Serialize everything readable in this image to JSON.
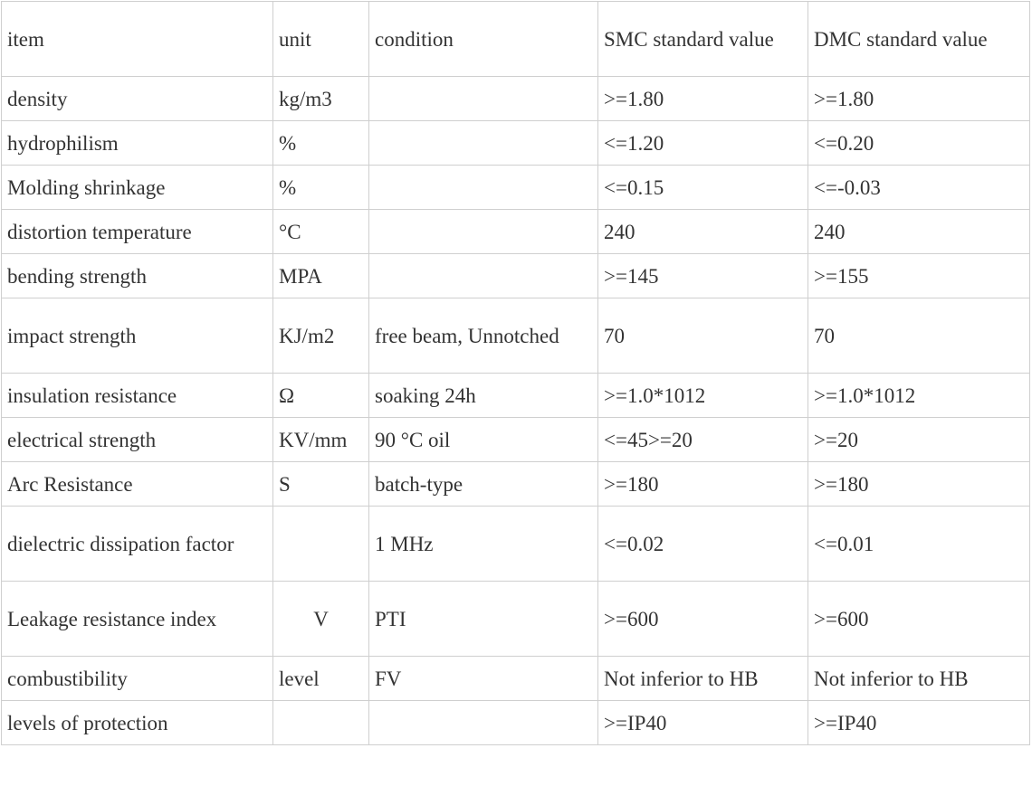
{
  "table": {
    "headers": {
      "item": "item",
      "unit": "unit",
      "condition": "condition",
      "smc": "SMC standard value",
      "dmc": "DMC standard value"
    },
    "rows": [
      {
        "item": "density",
        "unit": "kg/m3",
        "condition": "",
        "smc": ">=1.80",
        "dmc": ">=1.80"
      },
      {
        "item": "hydrophilism",
        "unit": "%",
        "condition": "",
        "smc": "<=1.20",
        "dmc": "<=0.20"
      },
      {
        "item": "Molding shrinkage",
        "unit": "%",
        "condition": "",
        "smc": "<=0.15",
        "dmc": "<=-0.03"
      },
      {
        "item": "distortion temperature",
        "unit": "°C",
        "condition": "",
        "smc": "240",
        "dmc": "240"
      },
      {
        "item": "bending strength",
        "unit": "MPA",
        "condition": "",
        "smc": ">=145",
        "dmc": ">=155"
      },
      {
        "item": "impact strength",
        "unit": "KJ/m2",
        "condition": "free beam, Unnotched",
        "smc": "70",
        "dmc": "70"
      },
      {
        "item": "insulation resistance",
        "unit": "Ω",
        "condition": "soaking 24h",
        "smc": ">=1.0*1012",
        "dmc": ">=1.0*1012"
      },
      {
        "item": "electrical strength",
        "unit": "KV/mm",
        "condition": "90 °C oil",
        "smc": "<=45>=20",
        "dmc": ">=20"
      },
      {
        "item": "Arc Resistance",
        "unit": "S",
        "condition": "batch-type",
        "smc": ">=180",
        "dmc": ">=180"
      },
      {
        "item": "dielectric dissipation factor",
        "unit": "",
        "condition": "1 MHz",
        "smc": "<=0.02",
        "dmc": "<=0.01"
      },
      {
        "item": "Leakage resistance index",
        "unit": "V",
        "condition": "PTI",
        "smc": ">=600",
        "dmc": ">=600"
      },
      {
        "item": "combustibility",
        "unit": "level",
        "condition": "FV",
        "smc": "Not inferior to HB",
        "dmc": "Not inferior to HB"
      },
      {
        "item": "levels of protection",
        "unit": "",
        "condition": "",
        "smc": ">=IP40",
        "dmc": ">=IP40"
      }
    ]
  }
}
